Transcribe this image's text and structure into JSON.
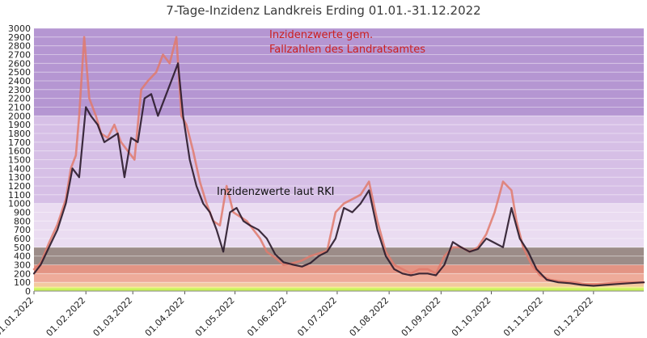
{
  "chart_data": {
    "type": "line",
    "title": "7-Tage-Inzidenz Landkreis Erding 01.01.-31.12.2022",
    "xlabel": "",
    "ylabel": "",
    "ylim": [
      0,
      3000
    ],
    "y_ticks": [
      0,
      100,
      200,
      300,
      400,
      500,
      600,
      700,
      800,
      900,
      1000,
      1100,
      1200,
      1300,
      1400,
      1500,
      1600,
      1700,
      1800,
      1900,
      2000,
      2100,
      2200,
      2300,
      2400,
      2500,
      2600,
      2700,
      2800,
      2900,
      3000
    ],
    "x_range": [
      "2022-01-01",
      "2022-12-31"
    ],
    "x_tick_labels": [
      "01.01.2022",
      "01.02.2022",
      "01.03.2022",
      "01.04.2022",
      "01.05.2022",
      "01.06.2022",
      "01.07.2022",
      "01.08.2022",
      "01.09.2022",
      "01.10.2022",
      "01.11.2022",
      "01.12.2022"
    ],
    "x_tick_dates": [
      "2022-01-01",
      "2022-02-01",
      "2022-03-01",
      "2022-04-01",
      "2022-05-01",
      "2022-06-01",
      "2022-07-01",
      "2022-08-01",
      "2022-09-01",
      "2022-10-01",
      "2022-11-01",
      "2022-12-01"
    ],
    "grid": true,
    "background_bands": [
      {
        "from": 0,
        "to": 35,
        "color": "#c8f25a"
      },
      {
        "from": 35,
        "to": 50,
        "color": "#f3f08a"
      },
      {
        "from": 50,
        "to": 100,
        "color": "#f3c9a0"
      },
      {
        "from": 100,
        "to": 200,
        "color": "#eeab9a"
      },
      {
        "from": 200,
        "to": 300,
        "color": "#e39484"
      },
      {
        "from": 300,
        "to": 500,
        "color": "#9c8c88"
      },
      {
        "from": 500,
        "to": 1000,
        "color": "#eadcf1"
      },
      {
        "from": 1000,
        "to": 2000,
        "color": "#d6bfe6"
      },
      {
        "from": 2000,
        "to": 3000,
        "color": "#b596d2"
      }
    ],
    "annotations": [
      {
        "text": "Inzidenzwerte gem.",
        "color": "#cc1f1f"
      },
      {
        "text": "Fallzahlen des Landratsamtes",
        "color": "#cc1f1f"
      },
      {
        "text": "Inzidenzwerte laut RKI",
        "color": "#111111"
      }
    ],
    "series": [
      {
        "color": "#e07a6c",
        "x": [
          "2022-01-01",
          "2022-01-05",
          "2022-01-10",
          "2022-01-15",
          "2022-01-20",
          "2022-01-23",
          "2022-01-26",
          "2022-01-28",
          "2022-01-31",
          "2022-02-03",
          "2022-02-07",
          "2022-02-10",
          "2022-02-14",
          "2022-02-18",
          "2022-02-22",
          "2022-02-26",
          "2022-03-02",
          "2022-03-06",
          "2022-03-10",
          "2022-03-15",
          "2022-03-19",
          "2022-03-23",
          "2022-03-27",
          "2022-03-30",
          "2022-04-02",
          "2022-04-06",
          "2022-04-10",
          "2022-04-14",
          "2022-04-18",
          "2022-04-22",
          "2022-04-26",
          "2022-04-30",
          "2022-05-04",
          "2022-05-08",
          "2022-05-12",
          "2022-05-16",
          "2022-05-20",
          "2022-05-25",
          "2022-05-30",
          "2022-06-05",
          "2022-06-10",
          "2022-06-15",
          "2022-06-20",
          "2022-06-25",
          "2022-06-30",
          "2022-07-05",
          "2022-07-10",
          "2022-07-15",
          "2022-07-20",
          "2022-07-25",
          "2022-07-30",
          "2022-08-04",
          "2022-08-09",
          "2022-08-14",
          "2022-08-19",
          "2022-08-24",
          "2022-08-29",
          "2022-09-03",
          "2022-09-08",
          "2022-09-13",
          "2022-09-18",
          "2022-09-23",
          "2022-09-28",
          "2022-10-03",
          "2022-10-08",
          "2022-10-13",
          "2022-10-16",
          "2022-10-20",
          "2022-10-25",
          "2022-10-30",
          "2022-11-05",
          "2022-11-12",
          "2022-11-19",
          "2022-11-26",
          "2022-12-03",
          "2022-12-10",
          "2022-12-17",
          "2022-12-24",
          "2022-12-31"
        ],
        "values": [
          250,
          320,
          550,
          760,
          1050,
          1400,
          1550,
          2000,
          2900,
          2200,
          2000,
          1800,
          1750,
          1900,
          1700,
          1600,
          1500,
          2300,
          2400,
          2500,
          2700,
          2600,
          2900,
          2000,
          1900,
          1600,
          1250,
          1000,
          800,
          750,
          1200,
          900,
          850,
          800,
          700,
          600,
          450,
          380,
          300,
          320,
          350,
          400,
          430,
          460,
          900,
          1000,
          1050,
          1100,
          1250,
          800,
          450,
          300,
          250,
          200,
          250,
          250,
          200,
          400,
          500,
          500,
          450,
          500,
          650,
          900,
          1250,
          1150,
          800,
          500,
          300,
          180,
          130,
          110,
          100,
          80,
          80,
          90,
          100,
          100,
          100
        ]
      },
      {
        "color": "#2a1a2a",
        "x": [
          "2022-01-01",
          "2022-01-05",
          "2022-01-10",
          "2022-01-15",
          "2022-01-20",
          "2022-01-24",
          "2022-01-28",
          "2022-02-01",
          "2022-02-04",
          "2022-02-08",
          "2022-02-12",
          "2022-02-16",
          "2022-02-20",
          "2022-02-24",
          "2022-02-28",
          "2022-03-04",
          "2022-03-08",
          "2022-03-12",
          "2022-03-16",
          "2022-03-20",
          "2022-03-24",
          "2022-03-28",
          "2022-03-31",
          "2022-04-04",
          "2022-04-08",
          "2022-04-12",
          "2022-04-16",
          "2022-04-20",
          "2022-04-24",
          "2022-04-28",
          "2022-05-02",
          "2022-05-06",
          "2022-05-10",
          "2022-05-15",
          "2022-05-20",
          "2022-05-25",
          "2022-05-30",
          "2022-06-05",
          "2022-06-10",
          "2022-06-15",
          "2022-06-20",
          "2022-06-25",
          "2022-06-30",
          "2022-07-05",
          "2022-07-10",
          "2022-07-15",
          "2022-07-20",
          "2022-07-25",
          "2022-07-30",
          "2022-08-04",
          "2022-08-09",
          "2022-08-14",
          "2022-08-19",
          "2022-08-24",
          "2022-08-29",
          "2022-09-03",
          "2022-09-08",
          "2022-09-13",
          "2022-09-18",
          "2022-09-23",
          "2022-09-28",
          "2022-10-03",
          "2022-10-08",
          "2022-10-13",
          "2022-10-18",
          "2022-10-23",
          "2022-10-28",
          "2022-11-03",
          "2022-11-10",
          "2022-11-17",
          "2022-11-24",
          "2022-12-01",
          "2022-12-08",
          "2022-12-15",
          "2022-12-22",
          "2022-12-31"
        ],
        "values": [
          200,
          300,
          500,
          700,
          1000,
          1400,
          1300,
          2100,
          2000,
          1900,
          1700,
          1750,
          1800,
          1300,
          1750,
          1700,
          2200,
          2250,
          2000,
          2200,
          2400,
          2600,
          2000,
          1500,
          1200,
          1000,
          900,
          700,
          450,
          900,
          950,
          800,
          750,
          700,
          600,
          420,
          330,
          300,
          280,
          320,
          400,
          450,
          600,
          950,
          900,
          1000,
          1150,
          700,
          400,
          250,
          200,
          180,
          200,
          200,
          180,
          300,
          560,
          500,
          450,
          480,
          600,
          550,
          500,
          950,
          600,
          450,
          250,
          130,
          100,
          90,
          70,
          60,
          70,
          80,
          90,
          100
        ]
      }
    ]
  }
}
